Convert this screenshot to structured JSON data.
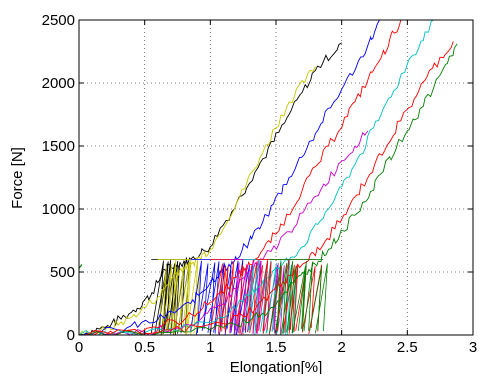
{
  "chart_data": {
    "type": "line",
    "xlabel": "Elongation[%]",
    "ylabel": "Force [N]",
    "xlim": [
      0,
      3
    ],
    "ylim": [
      0,
      2500
    ],
    "x_ticks": [
      0,
      0.5,
      1,
      1.5,
      2,
      2.5,
      3
    ],
    "y_ticks": [
      0,
      500,
      1000,
      1500,
      2000,
      2500
    ],
    "x_tick_labels": [
      "0",
      "0.5",
      "1",
      "1.5",
      "2",
      "2.5",
      "3"
    ],
    "y_tick_labels": [
      "0",
      "500",
      "1000",
      "1500",
      "2000",
      "2500"
    ],
    "grid": true,
    "grid_style": "dotted",
    "legend": "none",
    "series": [
      {
        "color": "#000000",
        "x": [
          0.0,
          0.2,
          0.4,
          0.55,
          0.65,
          0.75,
          0.85,
          1.0,
          1.2,
          1.4,
          1.6,
          1.8,
          2.0
        ],
        "y": [
          0,
          60,
          180,
          320,
          520,
          560,
          600,
          700,
          1050,
          1400,
          1750,
          2100,
          2320
        ],
        "cycles": [
          {
            "x0": 0.55,
            "x1": 0.75,
            "y0": 0,
            "y1": 600
          }
        ]
      },
      {
        "color": "#c8c800",
        "x": [
          0.0,
          0.2,
          0.4,
          0.6,
          0.75,
          0.85,
          1.0,
          1.2,
          1.4,
          1.6,
          1.8
        ],
        "y": [
          0,
          40,
          140,
          300,
          500,
          560,
          680,
          1050,
          1450,
          1850,
          2130
        ],
        "cycles": [
          {
            "x0": 0.6,
            "x1": 0.85,
            "y0": 0,
            "y1": 600
          }
        ]
      },
      {
        "color": "#0000ff",
        "x": [
          0.0,
          0.3,
          0.6,
          0.85,
          1.0,
          1.1,
          1.2,
          1.4,
          1.6,
          1.8,
          2.0,
          2.2,
          2.3
        ],
        "y": [
          0,
          40,
          120,
          250,
          420,
          520,
          600,
          900,
          1250,
          1600,
          1950,
          2300,
          2500
        ],
        "cycles": [
          {
            "x0": 0.85,
            "x1": 1.2,
            "y0": 0,
            "y1": 600
          }
        ]
      },
      {
        "color": "#ff0000",
        "x": [
          0.0,
          0.4,
          0.8,
          1.0,
          1.2,
          1.3,
          1.5,
          1.7,
          1.9,
          2.1,
          2.3,
          2.45
        ],
        "y": [
          0,
          30,
          120,
          260,
          460,
          560,
          800,
          1150,
          1500,
          1850,
          2200,
          2500
        ],
        "cycles": [
          {
            "x0": 1.0,
            "x1": 1.3,
            "y0": 0,
            "y1": 600
          }
        ]
      },
      {
        "color": "#cc00cc",
        "x": [
          0.0,
          0.5,
          0.9,
          1.1,
          1.25,
          1.4,
          1.6,
          1.8,
          2.0,
          2.2
        ],
        "y": [
          0,
          20,
          100,
          250,
          450,
          600,
          820,
          1100,
          1380,
          1620
        ],
        "cycles": [
          {
            "x0": 1.15,
            "x1": 1.5,
            "y0": 0,
            "y1": 600
          }
        ]
      },
      {
        "color": "#00c0c0",
        "x": [
          0.0,
          0.5,
          1.0,
          1.25,
          1.4,
          1.55,
          1.7,
          1.9,
          2.1,
          2.3,
          2.5,
          2.7
        ],
        "y": [
          0,
          20,
          100,
          260,
          430,
          560,
          700,
          1000,
          1350,
          1750,
          2150,
          2500
        ],
        "cycles": [
          {
            "x0": 1.25,
            "x1": 1.6,
            "y0": 0,
            "y1": 600
          }
        ]
      },
      {
        "color": "#ff0000",
        "x": [
          0.0,
          0.6,
          1.1,
          1.35,
          1.55,
          1.7,
          1.85,
          2.05,
          2.25,
          2.45,
          2.65,
          2.85
        ],
        "y": [
          0,
          20,
          90,
          220,
          420,
          560,
          700,
          1000,
          1350,
          1700,
          2050,
          2330
        ],
        "cycles": [
          {
            "x0": 1.35,
            "x1": 1.75,
            "y0": 0,
            "y1": 600
          }
        ]
      },
      {
        "color": "#008000",
        "x": [
          0.0,
          0.7,
          1.2,
          1.45,
          1.6,
          1.75,
          1.9,
          2.1,
          2.3,
          2.5,
          2.7,
          2.88
        ],
        "y": [
          0,
          20,
          80,
          200,
          380,
          520,
          680,
          950,
          1280,
          1620,
          1960,
          2310
        ],
        "cycles": [
          {
            "x0": 1.45,
            "x1": 1.8,
            "y0": 0,
            "y1": 600
          }
        ]
      }
    ]
  }
}
